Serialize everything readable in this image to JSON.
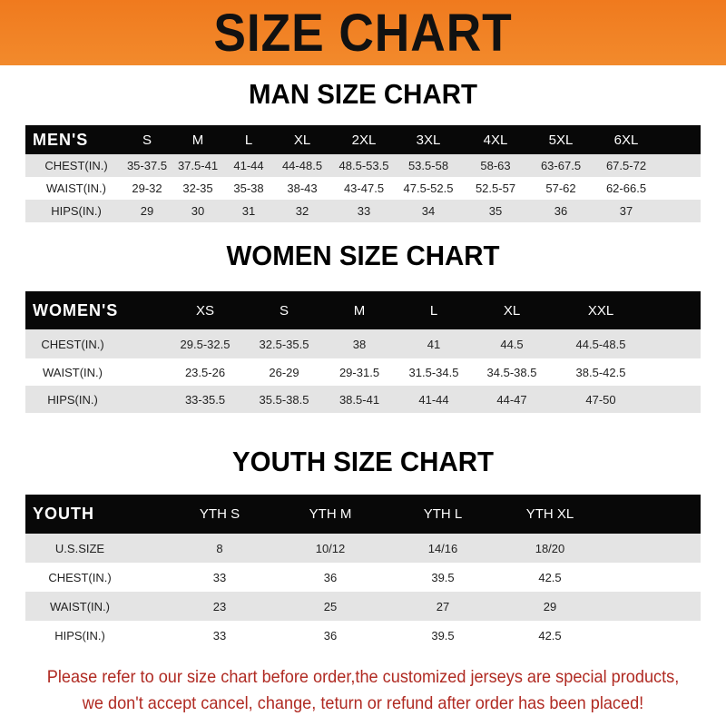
{
  "banner_title": "SIZE CHART",
  "colors": {
    "banner": "#f07a1e",
    "header_row": "#080808",
    "stripe": "#e4e4e4",
    "note": "#b02a22"
  },
  "men": {
    "title": "MAN SIZE CHART",
    "header": [
      "MEN'S",
      "S",
      "M",
      "L",
      "XL",
      "2XL",
      "3XL",
      "4XL",
      "5XL",
      "6XL"
    ],
    "rows": [
      [
        "CHEST(IN.)",
        "35-37.5",
        "37.5-41",
        "41-44",
        "44-48.5",
        "48.5-53.5",
        "53.5-58",
        "58-63",
        "63-67.5",
        "67.5-72"
      ],
      [
        "WAIST(IN.)",
        "29-32",
        "32-35",
        "35-38",
        "38-43",
        "43-47.5",
        "47.5-52.5",
        "52.5-57",
        "57-62",
        "62-66.5"
      ],
      [
        "HIPS(IN.)",
        "29",
        "30",
        "31",
        "32",
        "33",
        "34",
        "35",
        "36",
        "37"
      ]
    ]
  },
  "women": {
    "title": "WOMEN SIZE CHART",
    "header": [
      "WOMEN'S",
      "XS",
      "S",
      "M",
      "L",
      "XL",
      "XXL"
    ],
    "rows": [
      [
        "CHEST(IN.)",
        "29.5-32.5",
        "32.5-35.5",
        "38",
        "41",
        "44.5",
        "44.5-48.5"
      ],
      [
        "WAIST(IN.)",
        "23.5-26",
        "26-29",
        "29-31.5",
        "31.5-34.5",
        "34.5-38.5",
        "38.5-42.5"
      ],
      [
        "HIPS(IN.)",
        "33-35.5",
        "35.5-38.5",
        "38.5-41",
        "41-44",
        "44-47",
        "47-50"
      ]
    ]
  },
  "youth": {
    "title": "YOUTH SIZE CHART",
    "header": [
      "YOUTH",
      "YTH S",
      "YTH M",
      "YTH L",
      "YTH XL"
    ],
    "rows": [
      [
        "U.S.SIZE",
        "8",
        "10/12",
        "14/16",
        "18/20"
      ],
      [
        "CHEST(IN.)",
        "33",
        "36",
        "39.5",
        "42.5"
      ],
      [
        "WAIST(IN.)",
        "23",
        "25",
        "27",
        "29"
      ],
      [
        "HIPS(IN.)",
        "33",
        "36",
        "39.5",
        "42.5"
      ]
    ]
  },
  "note": {
    "line1": "Please refer to our size chart before order,the customized jerseys are special products,",
    "line2": "we don't accept cancel, change, teturn or refund after order has been placed!"
  }
}
